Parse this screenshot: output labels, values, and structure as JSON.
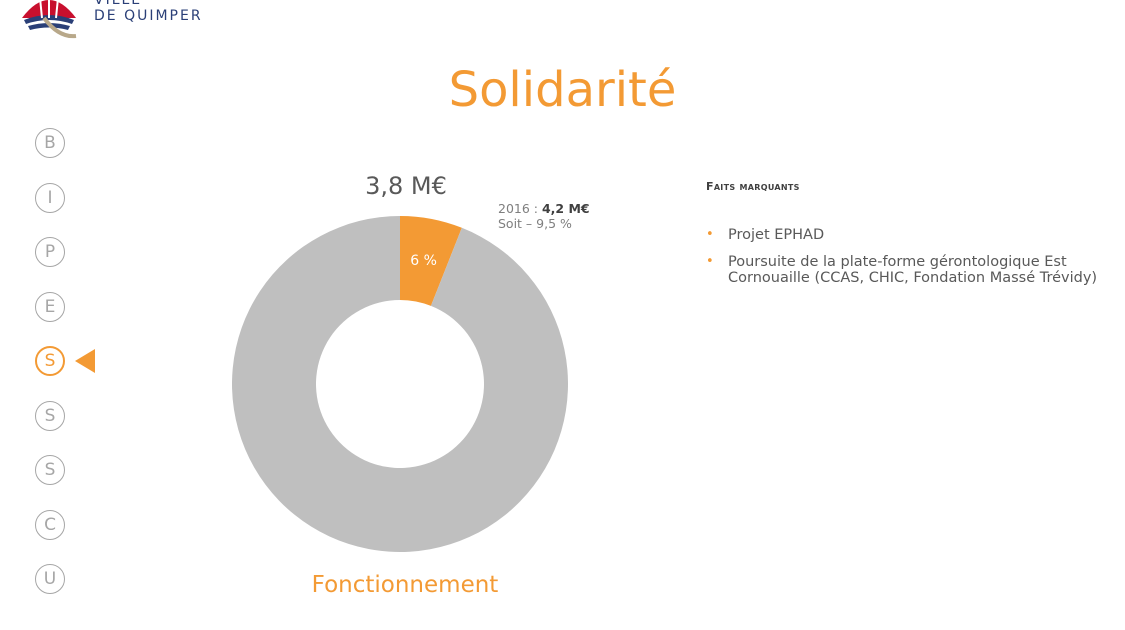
{
  "header": {
    "logo_line1": "VILLE",
    "logo_line2": "DE QUIMPER",
    "logo_icon": "city-crest-icon"
  },
  "title": "Solidarité",
  "nav": {
    "items": [
      {
        "letter": "B",
        "active": false
      },
      {
        "letter": "I",
        "active": false
      },
      {
        "letter": "P",
        "active": false
      },
      {
        "letter": "E",
        "active": false
      },
      {
        "letter": "S",
        "active": true
      },
      {
        "letter": "S",
        "active": false
      },
      {
        "letter": "S",
        "active": false
      },
      {
        "letter": "C",
        "active": false
      },
      {
        "letter": "U",
        "active": false
      }
    ],
    "active_color": "#f39a34"
  },
  "chart_data": {
    "type": "pie",
    "donut": true,
    "total_label": "3,8 M€",
    "category_label": "Fonctionnement",
    "slices": [
      {
        "label": "6 %",
        "value": 6,
        "color": "#f39a34"
      },
      {
        "label": "",
        "value": 94,
        "color": "#bfbfbf"
      }
    ],
    "annotation": {
      "year": "2016 : ",
      "amount": "4,2 M€",
      "change": "Soit – 9,5 %"
    }
  },
  "facts": {
    "title": "Faits marquants",
    "items": [
      "Projet EPHAD",
      "Poursuite de la plate-forme gérontologique Est Cornouaille (CCAS, CHIC, Fondation Massé Trévidy)"
    ]
  },
  "colors": {
    "accent": "#f39a34",
    "slice_rest": "#bfbfbf",
    "logo": "#2a3f77"
  }
}
